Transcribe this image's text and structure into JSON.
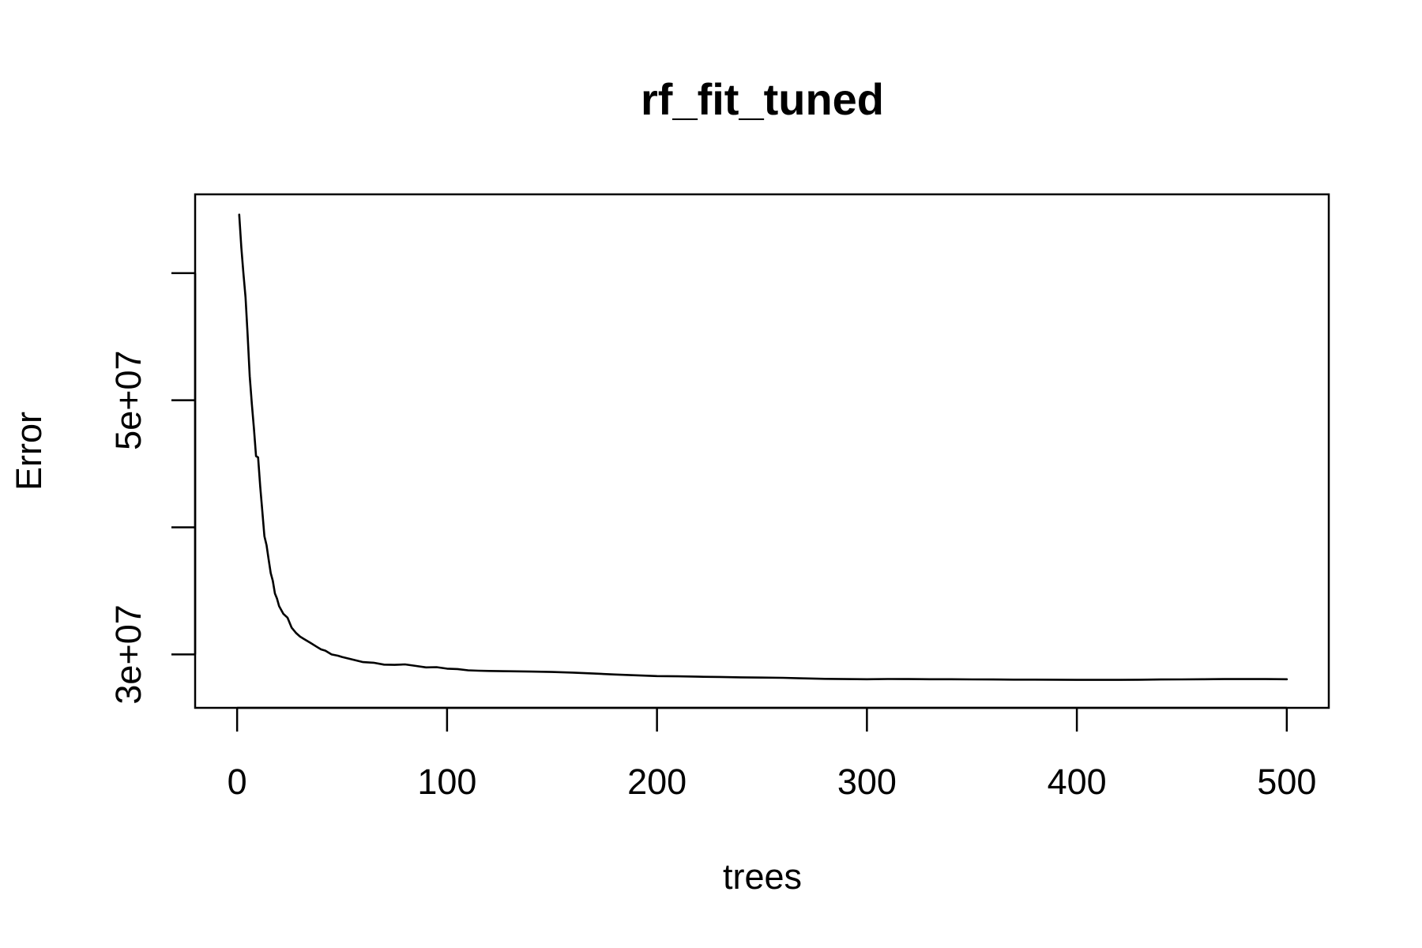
{
  "chart_data": {
    "type": "line",
    "title": "rf_fit_tuned",
    "xlabel": "trees",
    "ylabel": "Error",
    "xlim": [
      -20,
      520
    ],
    "ylim": [
      25800000,
      66200000
    ],
    "x_ticks": [
      0,
      100,
      200,
      300,
      400,
      500
    ],
    "x_tick_labels": [
      "0",
      "100",
      "200",
      "300",
      "400",
      "500"
    ],
    "y_ticks": [
      30000000,
      40000000,
      50000000,
      60000000
    ],
    "y_tick_labels": [
      "3e+07",
      "",
      "5e+07",
      ""
    ],
    "grid": false,
    "legend": "none",
    "line_color": "#000000",
    "series": [
      {
        "x": [
          1,
          2,
          3,
          4,
          5,
          6,
          7,
          8,
          9,
          10,
          11,
          12,
          13,
          14,
          15,
          16,
          17,
          18,
          19,
          20,
          22,
          24,
          26,
          28,
          30,
          32,
          35,
          38,
          40,
          42,
          45,
          48,
          50,
          55,
          60,
          65,
          70,
          75,
          80,
          85,
          90,
          95,
          100,
          105,
          110,
          115,
          120,
          130,
          140,
          150,
          160,
          170,
          180,
          190,
          200,
          210,
          220,
          230,
          240,
          250,
          260,
          270,
          280,
          290,
          300,
          310,
          320,
          330,
          340,
          350,
          360,
          370,
          380,
          390,
          400,
          410,
          420,
          430,
          440,
          450,
          460,
          470,
          480,
          490,
          500
        ],
        "values": [
          64600000,
          62000000,
          60000000,
          58100000,
          55200000,
          51900000,
          49700000,
          47800000,
          45600000,
          45500000,
          43200000,
          41300000,
          39300000,
          38600000,
          37500000,
          36400000,
          35800000,
          34800000,
          34400000,
          33800000,
          33200000,
          32900000,
          32100000,
          31700000,
          31400000,
          31200000,
          30900000,
          30600000,
          30400000,
          30300000,
          30000000,
          29900000,
          29800000,
          29600000,
          29400000,
          29350000,
          29200000,
          29180000,
          29220000,
          29100000,
          28980000,
          29000000,
          28880000,
          28850000,
          28750000,
          28720000,
          28700000,
          28680000,
          28650000,
          28620000,
          28570000,
          28500000,
          28420000,
          28360000,
          28300000,
          28280000,
          28250000,
          28230000,
          28200000,
          28180000,
          28160000,
          28120000,
          28080000,
          28060000,
          28050000,
          28070000,
          28060000,
          28050000,
          28050000,
          28040000,
          28030000,
          28020000,
          28020000,
          28010000,
          28000000,
          28000000,
          28000000,
          28010000,
          28030000,
          28040000,
          28050000,
          28060000,
          28060000,
          28060000,
          28050000
        ]
      }
    ]
  }
}
